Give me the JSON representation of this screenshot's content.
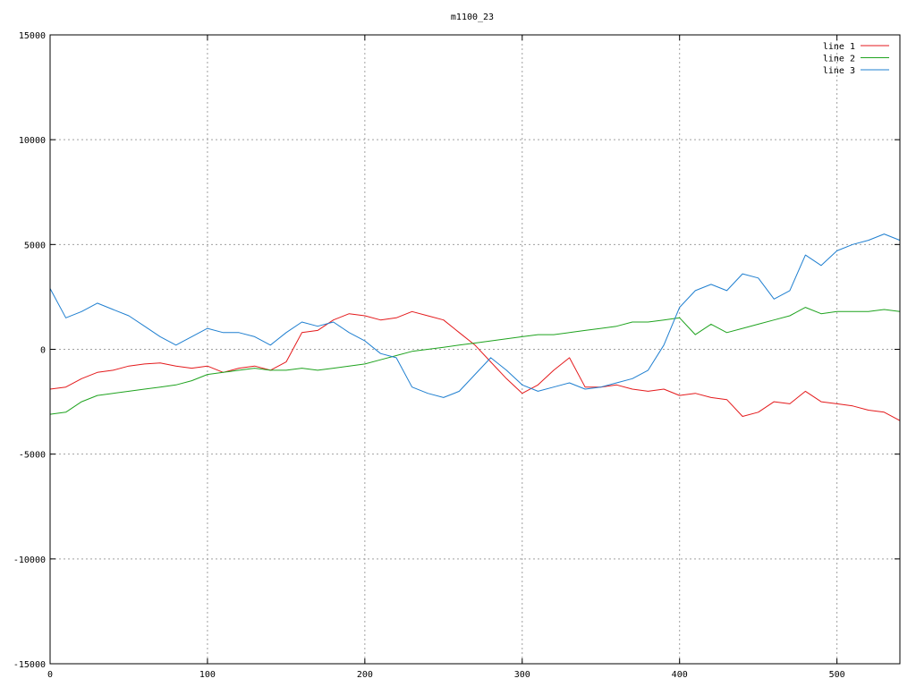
{
  "chart_data": {
    "type": "line",
    "title": "m1100_23",
    "xlim": [
      0,
      540
    ],
    "ylim": [
      -15000,
      15000
    ],
    "xticks": [
      0,
      100,
      200,
      300,
      400,
      500
    ],
    "yticks": [
      -15000,
      -10000,
      -5000,
      0,
      5000,
      10000,
      15000
    ],
    "grid": true,
    "legend_position": "top-right",
    "series": [
      {
        "name": "line 1",
        "color": "#e41a1c",
        "x": [
          0,
          10,
          20,
          30,
          40,
          50,
          60,
          70,
          80,
          90,
          100,
          110,
          120,
          130,
          140,
          150,
          160,
          170,
          180,
          190,
          200,
          210,
          220,
          230,
          240,
          250,
          260,
          270,
          280,
          290,
          300,
          310,
          320,
          330,
          340,
          350,
          360,
          370,
          380,
          390,
          400,
          410,
          420,
          430,
          440,
          450,
          460,
          470,
          480,
          490,
          500,
          510,
          520,
          530,
          540
        ],
        "y": [
          -1900,
          -1800,
          -1400,
          -1100,
          -1000,
          -800,
          -700,
          -650,
          -800,
          -900,
          -800,
          -1100,
          -900,
          -800,
          -1000,
          -600,
          800,
          900,
          1400,
          1700,
          1600,
          1400,
          1500,
          1800,
          1600,
          1400,
          800,
          200,
          -600,
          -1400,
          -2100,
          -1700,
          -1000,
          -400,
          -1800,
          -1800,
          -1700,
          -1900,
          -2000,
          -1900,
          -2200,
          -2100,
          -2300,
          -2400,
          -3200,
          -3000,
          -2500,
          -2600,
          -2000,
          -2500,
          -2600,
          -2700,
          -2900,
          -3000,
          -3400
        ]
      },
      {
        "name": "line 2",
        "color": "#1fa31f",
        "x": [
          0,
          10,
          20,
          30,
          40,
          50,
          60,
          70,
          80,
          90,
          100,
          110,
          120,
          130,
          140,
          150,
          160,
          170,
          180,
          190,
          200,
          210,
          220,
          230,
          240,
          250,
          260,
          270,
          280,
          290,
          300,
          310,
          320,
          330,
          340,
          350,
          360,
          370,
          380,
          390,
          400,
          410,
          420,
          430,
          440,
          450,
          460,
          470,
          480,
          490,
          500,
          510,
          520,
          530,
          540
        ],
        "y": [
          -3100,
          -3000,
          -2500,
          -2200,
          -2100,
          -2000,
          -1900,
          -1800,
          -1700,
          -1500,
          -1200,
          -1100,
          -1000,
          -900,
          -1000,
          -1000,
          -900,
          -1000,
          -900,
          -800,
          -700,
          -500,
          -300,
          -100,
          0,
          100,
          200,
          300,
          400,
          500,
          600,
          700,
          700,
          800,
          900,
          1000,
          1100,
          1300,
          1300,
          1400,
          1500,
          700,
          1200,
          800,
          1000,
          1200,
          1400,
          1600,
          2000,
          1700,
          1800,
          1800,
          1800,
          1900,
          1800
        ]
      },
      {
        "name": "line 3",
        "color": "#1f7fd0",
        "x": [
          0,
          10,
          20,
          30,
          40,
          50,
          60,
          70,
          80,
          90,
          100,
          110,
          120,
          130,
          140,
          150,
          160,
          170,
          180,
          190,
          200,
          210,
          220,
          230,
          240,
          250,
          260,
          270,
          280,
          290,
          300,
          310,
          320,
          330,
          340,
          350,
          360,
          370,
          380,
          390,
          400,
          410,
          420,
          430,
          440,
          450,
          460,
          470,
          480,
          490,
          500,
          510,
          520,
          530,
          540
        ],
        "y": [
          2900,
          1500,
          1800,
          2200,
          1900,
          1600,
          1100,
          600,
          200,
          600,
          1000,
          800,
          800,
          600,
          200,
          800,
          1300,
          1100,
          1300,
          800,
          400,
          -200,
          -400,
          -1800,
          -2100,
          -2300,
          -2000,
          -1200,
          -400,
          -1000,
          -1700,
          -2000,
          -1800,
          -1600,
          -1900,
          -1800,
          -1600,
          -1400,
          -1000,
          200,
          2000,
          2800,
          3100,
          2800,
          3600,
          3400,
          2400,
          2800,
          4500,
          4000,
          4700,
          5000,
          5200,
          5500,
          5200
        ]
      }
    ]
  }
}
